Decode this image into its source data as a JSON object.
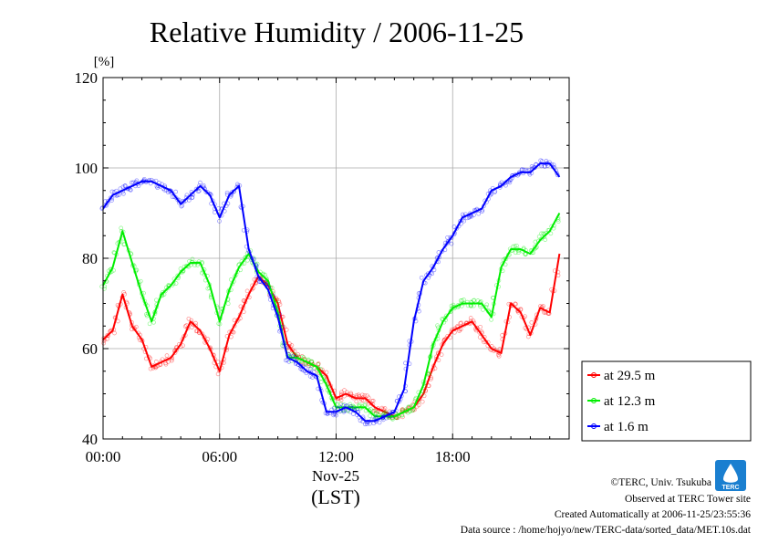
{
  "chart_data": {
    "type": "line",
    "title": "Relative Humidity / 2006-11-25",
    "yunit": "[%]",
    "ylim": [
      40,
      120
    ],
    "yticks": [
      "40",
      "60",
      "80",
      "100",
      "120"
    ],
    "xlim": [
      0,
      24
    ],
    "xticks": [
      {
        "label": "00:00",
        "value": 0
      },
      {
        "label": "06:00",
        "value": 6
      },
      {
        "label": "12:00",
        "value": 12
      },
      {
        "label": "18:00",
        "value": 18
      }
    ],
    "xdate": "Nov-25",
    "xlabel": "(LST)",
    "grid": true,
    "legend_position": "right",
    "x_hours": [
      0,
      0.5,
      1,
      1.5,
      2,
      2.5,
      3,
      3.5,
      4,
      4.5,
      5,
      5.5,
      6,
      6.5,
      7,
      7.5,
      8,
      8.5,
      9,
      9.5,
      10,
      10.5,
      11,
      11.5,
      12,
      12.5,
      13,
      13.5,
      14,
      14.5,
      15,
      15.5,
      16,
      16.5,
      17,
      17.5,
      18,
      18.5,
      19,
      19.5,
      20,
      20.5,
      21,
      21.5,
      22,
      22.5,
      23,
      23.5
    ],
    "series": [
      {
        "name": "at 29.5 m",
        "color": "#ff0000",
        "values": [
          62,
          64,
          72,
          65,
          62,
          56,
          57,
          58,
          61,
          66,
          64,
          60,
          55,
          63,
          67,
          72,
          76,
          74,
          70,
          61,
          58,
          57,
          56,
          54,
          49,
          50,
          49,
          49,
          47,
          46,
          45,
          46,
          47,
          50,
          56,
          61,
          64,
          65,
          66,
          63,
          60,
          59,
          70,
          68,
          63,
          69,
          68,
          81
        ]
      },
      {
        "name": "at 12.3 m",
        "color": "#00ee00",
        "values": [
          74,
          78,
          86,
          79,
          72,
          66,
          72,
          74,
          77,
          79,
          79,
          74,
          66,
          73,
          78,
          81,
          77,
          75,
          68,
          58,
          58,
          57,
          56,
          52,
          47,
          47,
          47,
          47,
          45,
          45,
          45,
          46,
          47,
          52,
          61,
          66,
          69,
          70,
          70,
          70,
          67,
          78,
          82,
          82,
          81,
          84,
          86,
          90
        ]
      },
      {
        "name": "at 1.6 m",
        "color": "#0000ff",
        "values": [
          91,
          94,
          95,
          96,
          97,
          97,
          96,
          95,
          92,
          94,
          96,
          94,
          89,
          94,
          96,
          82,
          76,
          73,
          67,
          58,
          57,
          55,
          54,
          46,
          46,
          47,
          46,
          44,
          44,
          45,
          46,
          51,
          66,
          75,
          78,
          82,
          85,
          89,
          90,
          91,
          95,
          96,
          98,
          99,
          99,
          101,
          101,
          98
        ]
      }
    ]
  },
  "credits": [
    "©TERC, Univ. Tsukuba",
    "Observed at TERC Tower site",
    "Created Automatically at 2006-11-25/23:55:36",
    "Data source : /home/hojyo/new/TERC-data/sorted_data/MET.10s.dat"
  ],
  "logo_text": "TERC"
}
